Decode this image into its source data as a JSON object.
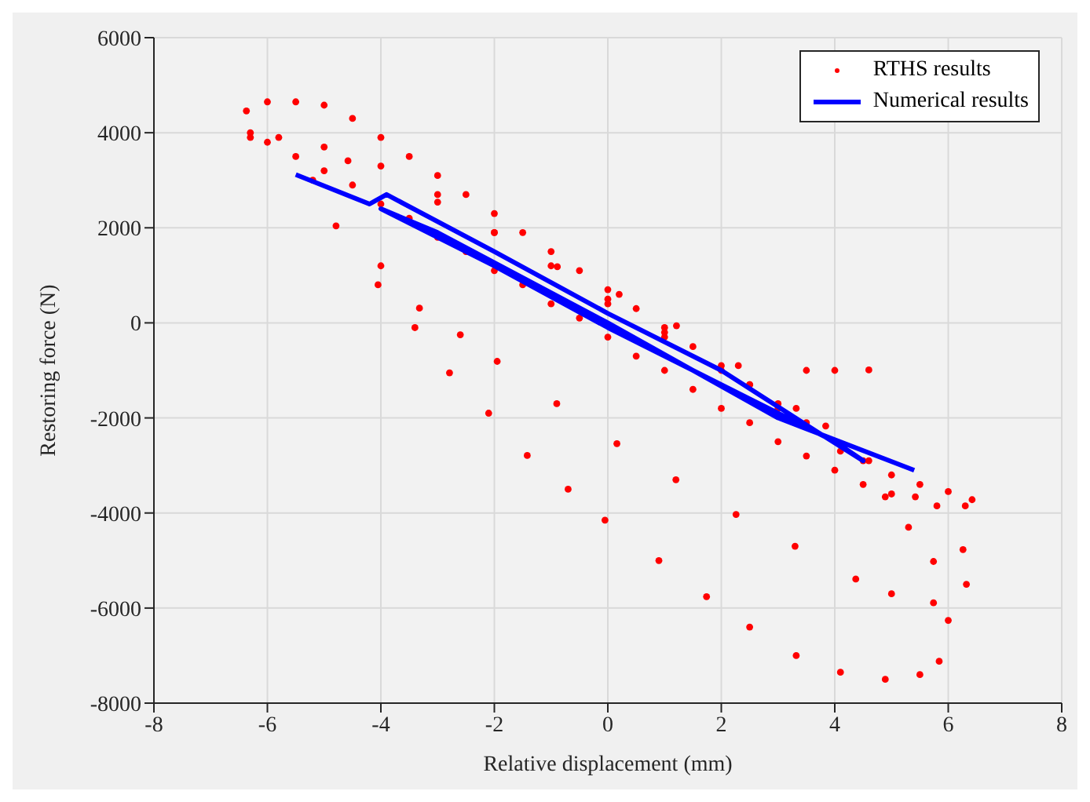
{
  "chart_data": {
    "type": "scatter",
    "xlabel": "Relative displacement (mm)",
    "ylabel": "Restoring force (N)",
    "xlim": [
      -8,
      8
    ],
    "xticks": [
      -8,
      -6,
      -4,
      -2,
      0,
      2,
      4,
      6,
      8
    ],
    "ylim": [
      -8000,
      6000
    ],
    "yticks": [
      -8000,
      -6000,
      -4000,
      -2000,
      0,
      2000,
      4000,
      6000
    ],
    "grid": true,
    "legend": "top right",
    "series": [
      {
        "name": "RTHS results",
        "type": "scatter",
        "marker": "circle",
        "color": "#ff0000",
        "x": [
          -6.3,
          -6.37,
          -6.0,
          -5.5,
          -5.0,
          -4.5,
          -4.0,
          -3.5,
          -3.0,
          -2.5,
          -2.0,
          -1.5,
          -1.0,
          -0.5,
          0,
          0.5,
          1.0,
          1.5,
          2.0,
          2.5,
          3.0,
          3.5,
          4.0,
          4.5,
          5.0,
          5.5,
          6.0,
          6.42,
          6.3,
          5.8,
          5.0,
          4.5,
          4.0,
          3.5,
          3.0,
          2.5,
          2.0,
          1.5,
          1.0,
          0.5,
          0,
          -0.5,
          -1.0,
          -1.5,
          -2.0,
          -2.5,
          -3.0,
          -3.5,
          -4.0,
          -4.5,
          -5.0,
          -5.5,
          -6.0,
          -6.3,
          -5.8,
          -5.0,
          -4.0,
          -3.0,
          -2.0,
          -1.0,
          0,
          1.0,
          2.0,
          3.0,
          3.5,
          4.0,
          4.6,
          -5.2,
          -4.79,
          -4.05,
          -3.4,
          -2.79,
          -2.1,
          -1.42,
          -0.7,
          -0.05,
          0.9,
          1.74,
          2.5,
          3.32,
          4.1,
          4.89,
          5.5,
          5.84,
          6.0,
          5.74,
          5.3,
          4.89,
          4.1,
          3.32,
          2.3,
          1.21,
          0.2,
          -0.89,
          -2.0,
          -3.0,
          -4.58,
          -4.0,
          -3.32,
          -2.6,
          -1.95,
          -0.9,
          0.16,
          1.2,
          2.26,
          3.3,
          4.37,
          5.0,
          5.74,
          6.32,
          6.26,
          5.42,
          4.6,
          3.84,
          2.5,
          1.0,
          0
        ],
        "values": [
          4000,
          4460,
          4650,
          4650,
          4580,
          4300,
          3900,
          3500,
          3100,
          2700,
          2300,
          1900,
          1500,
          1100,
          700,
          300,
          -100,
          -500,
          -900,
          -1300,
          -1700,
          -2100,
          null,
          -2900,
          -3200,
          -3400,
          -3550,
          -3720,
          -3850,
          -3850,
          -3600,
          -3400,
          -3100,
          -2800,
          -2500,
          -2100,
          -1800,
          -1400,
          -1000,
          -700,
          -300,
          100,
          400,
          800,
          1100,
          1500,
          1800,
          2200,
          2500,
          2900,
          3200,
          3500,
          3800,
          3900,
          3900,
          3700,
          3300,
          2700,
          1900,
          1200,
          500,
          -300,
          -1000,
          -1800,
          -1000,
          -1000,
          -990,
          3000,
          2040,
          800,
          -100,
          -1050,
          -1900,
          -2790,
          -3500,
          -4150,
          -5000,
          -5760,
          -6400,
          -7000,
          -7350,
          -7500,
          -7400,
          -7120,
          -6260,
          -5020,
          -4300,
          -3660,
          -2700,
          -1800,
          -900,
          -60,
          600,
          1180,
          1900,
          2540,
          3410,
          1200,
          310,
          -250,
          -810,
          -1700,
          -2540,
          -3300,
          -4030,
          -4700,
          -5390,
          -5700,
          -5890,
          -5500,
          -4770,
          -3660,
          -2900,
          -2170,
          -1300,
          -200,
          400
        ]
      },
      {
        "name": "Numerical results",
        "type": "line",
        "marker": "none",
        "color": "#0000ff",
        "x": [
          -5.5,
          -4.2,
          -3.9,
          -2.0,
          0,
          2.0,
          3.7,
          4.5,
          4.0,
          2.0,
          0,
          -2.0,
          -4.0,
          -3.0,
          0,
          3.0,
          5.4
        ],
        "values": [
          3120,
          2500,
          2700,
          1500,
          200,
          -1000,
          -2300,
          -2900,
          -2500,
          -1300,
          -100,
          1200,
          2400,
          1900,
          0,
          -2000,
          -3100
        ]
      }
    ]
  }
}
